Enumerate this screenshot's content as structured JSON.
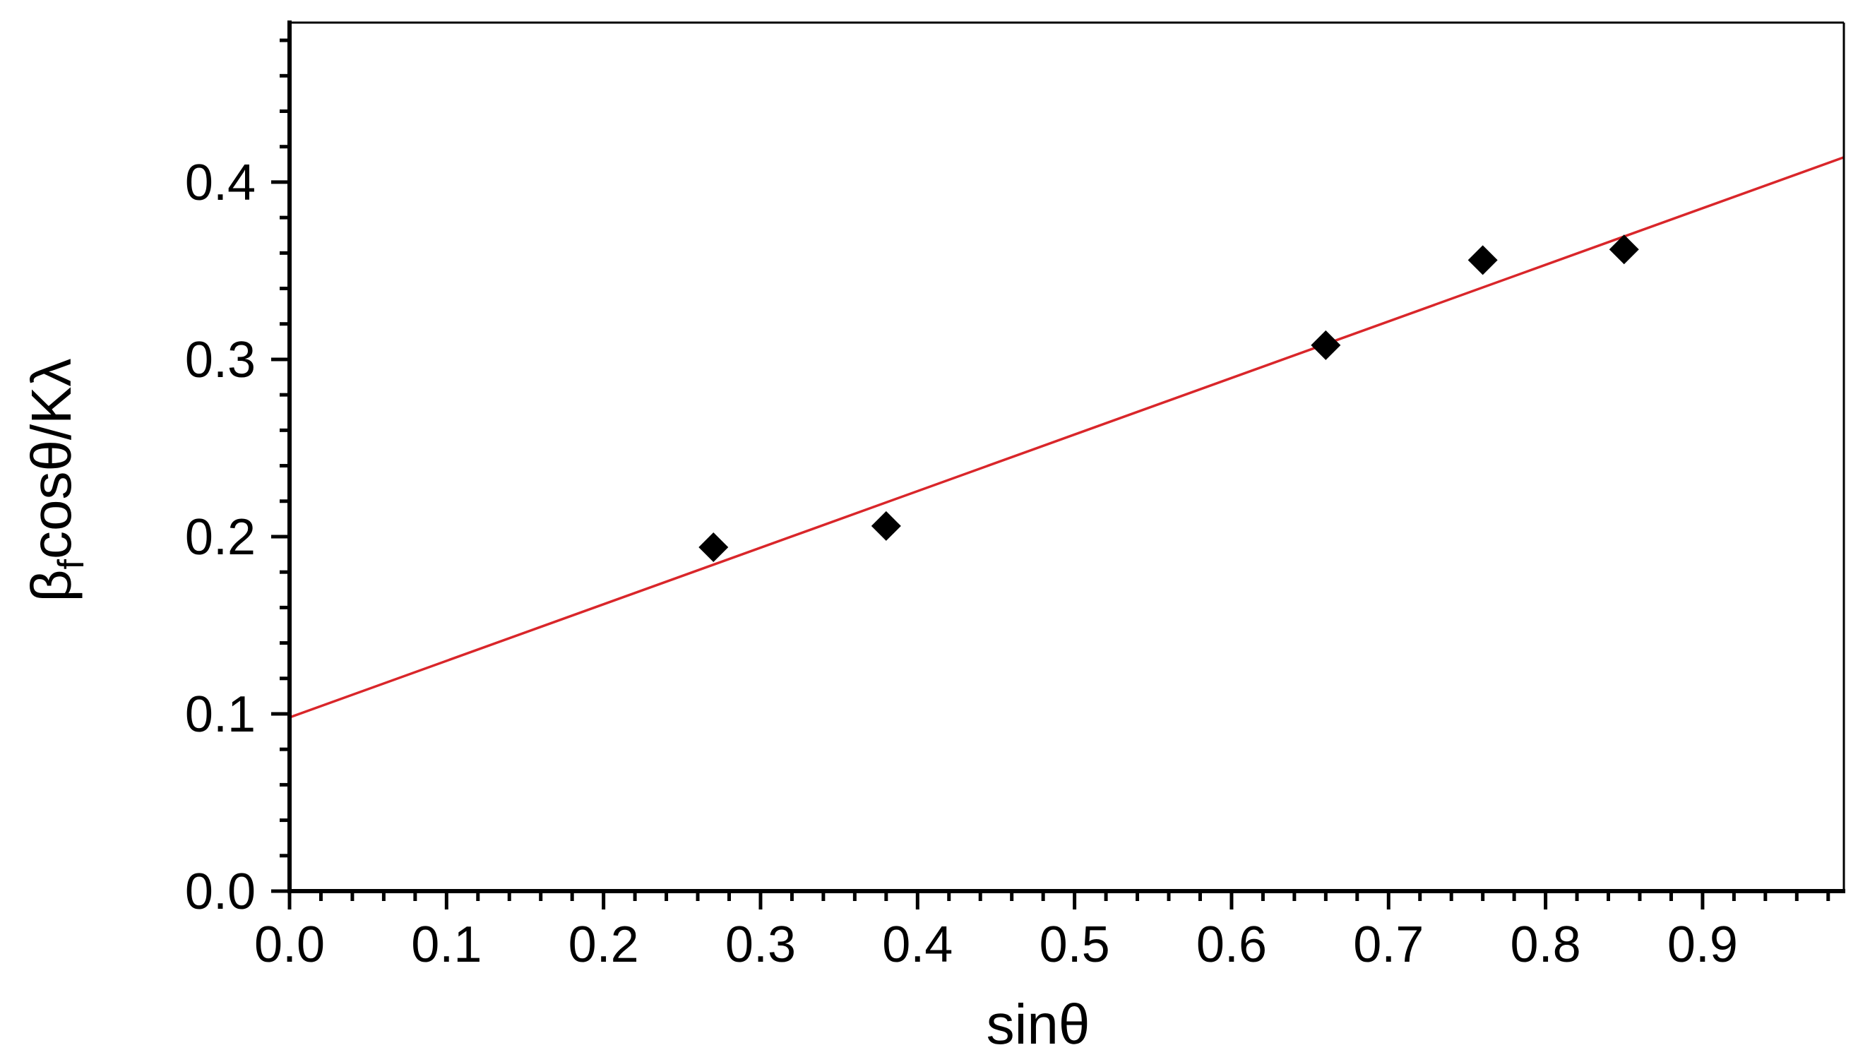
{
  "chart_data": {
    "type": "scatter",
    "xlabel": "sinθ",
    "ylabel_parts": {
      "beta": "β",
      "subscript": "f",
      "rest": "cosθ/Kλ"
    },
    "xlim": [
      0,
      0.99
    ],
    "ylim": [
      0,
      0.49
    ],
    "x_ticks": [
      0.0,
      0.1,
      0.2,
      0.3,
      0.4,
      0.5,
      0.6,
      0.7,
      0.8,
      0.9
    ],
    "x_tick_labels": [
      "0.0",
      "0.1",
      "0.2",
      "0.3",
      "0.4",
      "0.5",
      "0.6",
      "0.7",
      "0.8",
      "0.9"
    ],
    "y_ticks": [
      0.0,
      0.1,
      0.2,
      0.3,
      0.4
    ],
    "y_tick_labels": [
      "0.0",
      "0.1",
      "0.2",
      "0.3",
      "0.4"
    ],
    "x_minor_step": 0.02,
    "y_minor_step": 0.02,
    "grid": false,
    "series": [
      {
        "marker": "diamond",
        "color": "#000000",
        "x": [
          0.27,
          0.38,
          0.66,
          0.76,
          0.85
        ],
        "y": [
          0.194,
          0.206,
          0.308,
          0.356,
          0.362
        ]
      }
    ],
    "fit_line": {
      "color": "#d9262a",
      "x": [
        0.0,
        0.99
      ],
      "y": [
        0.098,
        0.414
      ]
    }
  }
}
